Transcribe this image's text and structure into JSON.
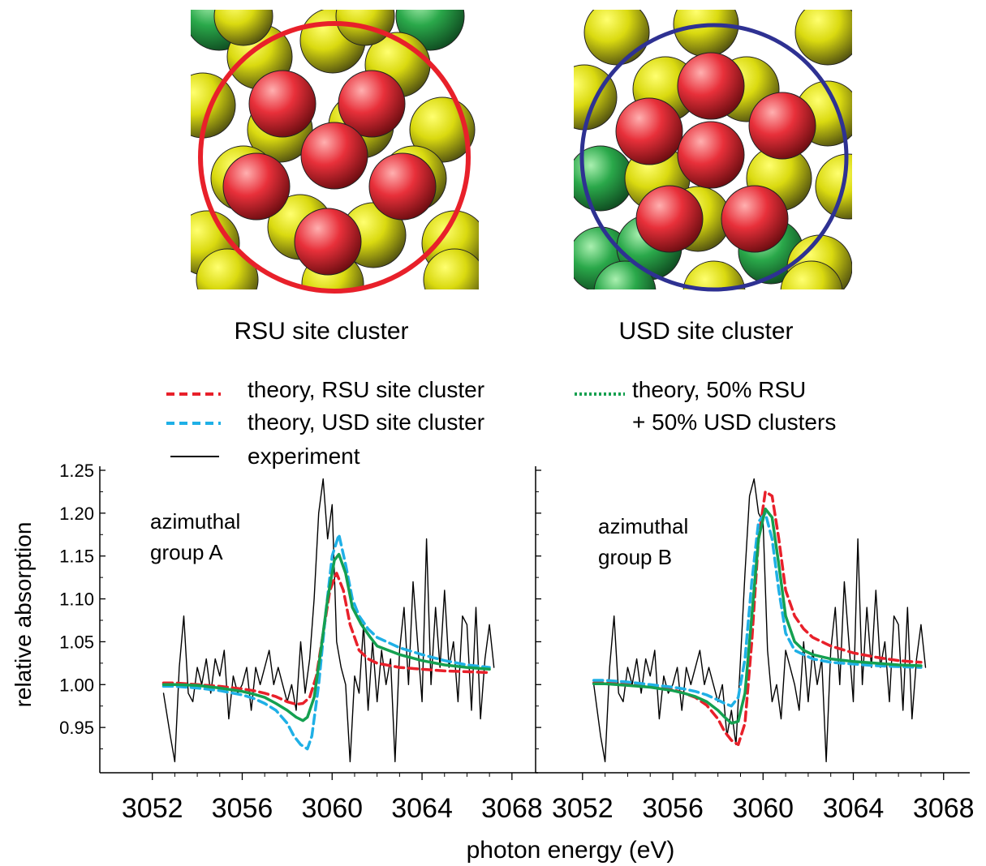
{
  "clusters": [
    {
      "label": "RSU site cluster",
      "ring_color": "#e8202a"
    },
    {
      "label": "USD site cluster",
      "ring_color": "#2e3192"
    }
  ],
  "atom_colors": {
    "adsorbate": "#e8202a",
    "substrate_top": "#e6e614",
    "substrate_second": "#2aa84a"
  },
  "legend": {
    "items": [
      {
        "text": "theory, RSU site cluster",
        "color": "#e8202a",
        "style": "dashed"
      },
      {
        "text": "theory, USD site cluster",
        "color": "#1fb0e6",
        "style": "dashed"
      },
      {
        "text": "experiment",
        "color": "#000000",
        "style": "solid"
      },
      {
        "text": "theory, 50% RSU",
        "text2": "+ 50% USD clusters",
        "color": "#14a050",
        "style": "dotted"
      }
    ]
  },
  "chart_data": [
    {
      "type": "line",
      "annotation": [
        "azimuthal",
        "group A"
      ],
      "ylabel": "relative absorption",
      "xlabel": "photon energy (eV)",
      "xlim": [
        3052,
        3068
      ],
      "ylim": [
        0.9,
        1.25
      ],
      "xticks": [
        "3052",
        "3056",
        "3060",
        "3064",
        "3068"
      ],
      "yticks": [
        "0.95",
        "1.00",
        "1.05",
        "1.10",
        "1.15",
        "1.20",
        "1.25"
      ],
      "series": [
        {
          "name": "experiment",
          "color": "#000000",
          "x": [
            3052.5,
            3052.8,
            3053.0,
            3053.2,
            3053.4,
            3053.6,
            3053.8,
            3054.0,
            3054.2,
            3054.4,
            3054.6,
            3054.8,
            3055.0,
            3055.2,
            3055.4,
            3055.6,
            3055.8,
            3056.0,
            3056.2,
            3056.4,
            3056.6,
            3056.8,
            3057.0,
            3057.2,
            3057.4,
            3057.6,
            3057.8,
            3058.0,
            3058.2,
            3058.4,
            3058.6,
            3058.8,
            3059.0,
            3059.2,
            3059.4,
            3059.6,
            3059.8,
            3060.0,
            3060.2,
            3060.4,
            3060.6,
            3060.8,
            3061.0,
            3061.2,
            3061.4,
            3061.6,
            3061.8,
            3062.0,
            3062.2,
            3062.4,
            3062.6,
            3062.8,
            3063.0,
            3063.2,
            3063.4,
            3063.6,
            3063.8,
            3064.0,
            3064.2,
            3064.4,
            3064.6,
            3064.8,
            3065.0,
            3065.2,
            3065.4,
            3065.6,
            3065.8,
            3066.0,
            3066.2,
            3066.4,
            3066.6,
            3066.8,
            3067.0,
            3067.2
          ],
          "y": [
            0.99,
            0.94,
            0.91,
            1.02,
            1.08,
            0.99,
            0.98,
            1.02,
            1.0,
            1.03,
            0.99,
            1.03,
            1.01,
            1.04,
            0.96,
            1.01,
            0.99,
            1.0,
            1.02,
            0.97,
            1.02,
            1.0,
            1.02,
            1.04,
            1.0,
            1.02,
            1.0,
            0.98,
            1.0,
            0.97,
            1.05,
            0.99,
            1.03,
            1.1,
            1.2,
            1.24,
            1.17,
            1.21,
            1.05,
            1.02,
            1.0,
            0.91,
            1.01,
            0.99,
            1.07,
            0.97,
            1.05,
            0.98,
            1.04,
            1.0,
            1.03,
            0.91,
            1.04,
            1.09,
            1.0,
            1.12,
            1.05,
            0.98,
            1.17,
            1.0,
            1.09,
            1.02,
            1.11,
            1.02,
            1.05,
            0.98,
            1.08,
            1.07,
            0.97,
            1.09,
            0.96,
            1.03,
            1.07,
            1.02
          ]
        },
        {
          "name": "theory, RSU site cluster",
          "color": "#e8202a",
          "x": [
            3052.5,
            3053,
            3054,
            3055,
            3056,
            3056.5,
            3057,
            3057.5,
            3058,
            3058.4,
            3058.7,
            3059.0,
            3059.3,
            3059.6,
            3059.9,
            3060.2,
            3060.5,
            3060.8,
            3061.2,
            3061.6,
            3062,
            3063,
            3064,
            3065,
            3066,
            3067
          ],
          "y": [
            1.002,
            1.002,
            1.0,
            0.998,
            0.995,
            0.993,
            0.99,
            0.986,
            0.98,
            0.977,
            0.978,
            0.985,
            1.01,
            1.06,
            1.11,
            1.13,
            1.11,
            1.07,
            1.04,
            1.03,
            1.025,
            1.02,
            1.018,
            1.016,
            1.015,
            1.014
          ]
        },
        {
          "name": "theory, USD site cluster",
          "color": "#1fb0e6",
          "x": [
            3052.5,
            3053,
            3054,
            3055,
            3056,
            3056.5,
            3057,
            3057.5,
            3058,
            3058.3,
            3058.6,
            3058.9,
            3059.1,
            3059.4,
            3059.7,
            3060.0,
            3060.3,
            3060.6,
            3060.9,
            3061.2,
            3061.6,
            3062,
            3063,
            3064,
            3065,
            3066,
            3067
          ],
          "y": [
            0.998,
            0.998,
            0.996,
            0.993,
            0.988,
            0.984,
            0.978,
            0.97,
            0.955,
            0.94,
            0.93,
            0.925,
            0.94,
            1.0,
            1.08,
            1.15,
            1.175,
            1.14,
            1.1,
            1.08,
            1.065,
            1.055,
            1.043,
            1.035,
            1.028,
            1.023,
            1.02
          ]
        },
        {
          "name": "theory, 50% RSU + 50% USD clusters",
          "color": "#14a050",
          "x": [
            3052.5,
            3053,
            3054,
            3055,
            3056,
            3056.5,
            3057,
            3057.5,
            3058,
            3058.4,
            3058.7,
            3058.9,
            3059.2,
            3059.5,
            3059.8,
            3060.1,
            3060.3,
            3060.6,
            3060.9,
            3061.3,
            3061.7,
            3062,
            3063,
            3064,
            3065,
            3066,
            3067
          ],
          "y": [
            1.0,
            1.0,
            0.999,
            0.996,
            0.992,
            0.989,
            0.985,
            0.978,
            0.97,
            0.962,
            0.958,
            0.962,
            0.985,
            1.04,
            1.1,
            1.145,
            1.152,
            1.13,
            1.09,
            1.07,
            1.055,
            1.045,
            1.035,
            1.028,
            1.023,
            1.02,
            1.018
          ]
        }
      ]
    },
    {
      "type": "line",
      "annotation": [
        "azimuthal",
        "group B"
      ],
      "xlabel": "photon energy (eV)",
      "xlim": [
        3052,
        3068
      ],
      "ylim": [
        0.9,
        1.25
      ],
      "xticks": [
        "3052",
        "3056",
        "3060",
        "3064",
        "3068"
      ],
      "series": [
        {
          "name": "experiment",
          "color": "#000000",
          "x": [
            3052.5,
            3052.8,
            3053.0,
            3053.2,
            3053.4,
            3053.6,
            3053.8,
            3054.0,
            3054.2,
            3054.4,
            3054.6,
            3054.8,
            3055.0,
            3055.2,
            3055.4,
            3055.6,
            3055.8,
            3056.0,
            3056.2,
            3056.4,
            3056.6,
            3056.8,
            3057.0,
            3057.2,
            3057.4,
            3057.6,
            3057.8,
            3058.0,
            3058.2,
            3058.4,
            3058.6,
            3058.8,
            3059.0,
            3059.2,
            3059.4,
            3059.6,
            3059.8,
            3060.0,
            3060.2,
            3060.4,
            3060.6,
            3060.8,
            3061.0,
            3061.2,
            3061.4,
            3061.6,
            3061.8,
            3062.0,
            3062.2,
            3062.4,
            3062.6,
            3062.8,
            3063.0,
            3063.2,
            3063.4,
            3063.6,
            3063.8,
            3064.0,
            3064.2,
            3064.4,
            3064.6,
            3064.8,
            3065.0,
            3065.2,
            3065.4,
            3065.6,
            3065.8,
            3066.0,
            3066.2,
            3066.4,
            3066.6,
            3066.8,
            3067.0,
            3067.2
          ],
          "y": [
            1.0,
            0.94,
            0.91,
            1.02,
            1.08,
            0.99,
            0.98,
            1.02,
            1.0,
            1.03,
            0.99,
            1.03,
            1.01,
            1.04,
            0.96,
            1.01,
            0.99,
            1.0,
            1.02,
            0.97,
            1.02,
            1.0,
            1.02,
            1.04,
            1.0,
            1.02,
            1.0,
            0.98,
            1.0,
            0.94,
            0.97,
            0.93,
            1.03,
            1.13,
            1.22,
            1.24,
            1.2,
            1.19,
            1.04,
            0.98,
            1.0,
            0.96,
            1.04,
            1.02,
            1.0,
            0.97,
            1.05,
            0.98,
            1.04,
            1.0,
            1.03,
            0.91,
            1.04,
            1.09,
            1.0,
            1.12,
            1.05,
            0.98,
            1.17,
            1.0,
            1.09,
            1.02,
            1.11,
            1.02,
            1.05,
            0.98,
            1.08,
            1.07,
            0.97,
            1.09,
            0.96,
            1.03,
            1.07,
            1.02
          ]
        },
        {
          "name": "theory, RSU site cluster",
          "color": "#e8202a",
          "x": [
            3052.5,
            3053,
            3054,
            3055,
            3056,
            3056.5,
            3057,
            3057.5,
            3058,
            3058.3,
            3058.6,
            3058.9,
            3059.2,
            3059.5,
            3059.8,
            3060.1,
            3060.4,
            3060.7,
            3061.0,
            3061.4,
            3061.8,
            3062.2,
            3063,
            3064,
            3065,
            3066,
            3067
          ],
          "y": [
            1.002,
            1.002,
            1.0,
            0.998,
            0.994,
            0.99,
            0.985,
            0.976,
            0.96,
            0.945,
            0.935,
            0.93,
            0.955,
            1.05,
            1.17,
            1.225,
            1.22,
            1.17,
            1.11,
            1.08,
            1.065,
            1.055,
            1.045,
            1.037,
            1.032,
            1.028,
            1.026
          ]
        },
        {
          "name": "theory, USD site cluster",
          "color": "#1fb0e6",
          "x": [
            3052.5,
            3053,
            3054,
            3055,
            3056,
            3056.5,
            3057,
            3057.5,
            3058,
            3058.3,
            3058.6,
            3058.9,
            3059.2,
            3059.5,
            3059.8,
            3060.1,
            3060.4,
            3060.7,
            3061.0,
            3061.4,
            3061.8,
            3062.2,
            3063,
            3064,
            3065,
            3066,
            3067
          ],
          "y": [
            1.005,
            1.005,
            1.003,
            1.0,
            0.997,
            0.995,
            0.992,
            0.988,
            0.982,
            0.978,
            0.975,
            0.985,
            1.03,
            1.12,
            1.19,
            1.2,
            1.17,
            1.11,
            1.06,
            1.04,
            1.035,
            1.03,
            1.026,
            1.024,
            1.022,
            1.021,
            1.02
          ]
        },
        {
          "name": "theory, 50% RSU + 50% USD clusters",
          "color": "#14a050",
          "x": [
            3052.5,
            3053,
            3054,
            3055,
            3056,
            3056.5,
            3057,
            3057.5,
            3058,
            3058.3,
            3058.6,
            3058.9,
            3059.2,
            3059.5,
            3059.8,
            3060.1,
            3060.4,
            3060.7,
            3061.0,
            3061.4,
            3061.8,
            3062.2,
            3063,
            3064,
            3065,
            3066,
            3067
          ],
          "y": [
            1.001,
            1.001,
            0.999,
            0.997,
            0.993,
            0.99,
            0.986,
            0.98,
            0.97,
            0.962,
            0.955,
            0.957,
            0.99,
            1.08,
            1.17,
            1.205,
            1.195,
            1.14,
            1.08,
            1.05,
            1.04,
            1.035,
            1.03,
            1.027,
            1.025,
            1.023,
            1.022
          ]
        }
      ]
    }
  ]
}
